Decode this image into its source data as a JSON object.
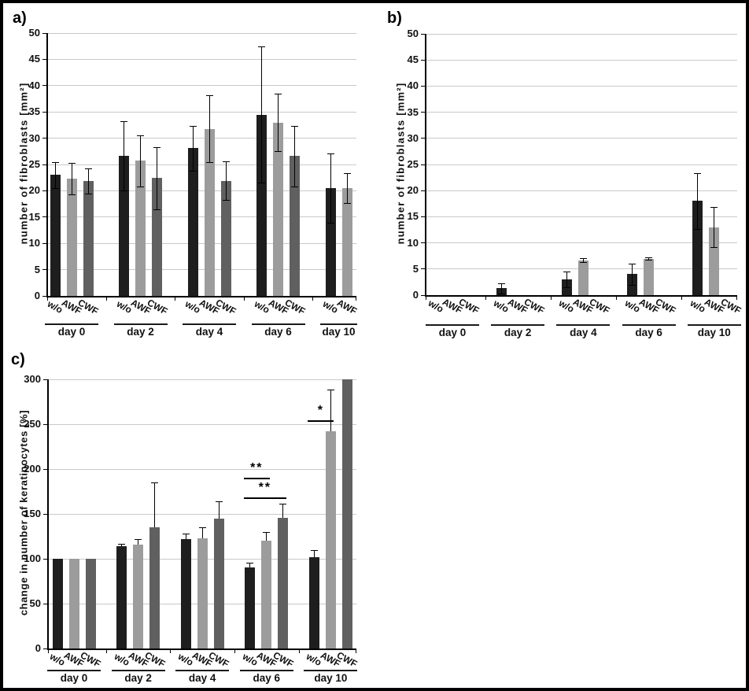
{
  "chart_data": [
    {
      "id": "a",
      "type": "bar",
      "panel_label": "a)",
      "title": "",
      "xlabel": "",
      "ylabel": "number of fibroblasts [mm²]",
      "ylim": [
        0,
        50
      ],
      "yticks": [
        0,
        5,
        10,
        15,
        20,
        25,
        30,
        35,
        40,
        45,
        50
      ],
      "grid": true,
      "legend": "none",
      "error_bars": "both",
      "series_labels": [
        "w/o",
        "AWF",
        "CWF"
      ],
      "series_colors": [
        "#1e1e1e",
        "#9c9c9c",
        "#606060"
      ],
      "categories": [
        "day 0",
        "day 2",
        "day 4",
        "day 6",
        "day 10"
      ],
      "groups": [
        {
          "category": "day 0",
          "labels": [
            "w/o",
            "AWF",
            "CWF"
          ],
          "values": [
            23.0,
            22.3,
            21.8
          ],
          "errors": [
            2.5,
            3.0,
            2.4
          ]
        },
        {
          "category": "day 2",
          "labels": [
            "w/o",
            "AWF",
            "CWF"
          ],
          "values": [
            26.6,
            25.7,
            22.4
          ],
          "errors": [
            6.6,
            4.9,
            5.9
          ]
        },
        {
          "category": "day 4",
          "labels": [
            "w/o",
            "AWF",
            "CWF"
          ],
          "values": [
            28.1,
            31.8,
            21.9
          ],
          "errors": [
            4.3,
            6.4,
            3.7
          ]
        },
        {
          "category": "day 6",
          "labels": [
            "w/o",
            "AWF",
            "CWF"
          ],
          "values": [
            34.5,
            33.0,
            26.6
          ],
          "errors": [
            13.0,
            5.5,
            5.8
          ]
        },
        {
          "category": "day 10",
          "labels": [
            "w/o",
            "AWF"
          ],
          "values": [
            20.5,
            20.5
          ],
          "errors": [
            6.6,
            2.9
          ]
        }
      ],
      "significance": []
    },
    {
      "id": "b",
      "type": "bar",
      "panel_label": "b)",
      "title": "",
      "xlabel": "",
      "ylabel": "number of fibroblasts [mm²]",
      "ylim": [
        0,
        50
      ],
      "yticks": [
        0,
        5,
        10,
        15,
        20,
        25,
        30,
        35,
        40,
        45,
        50
      ],
      "grid": true,
      "legend": "none",
      "error_bars": "both",
      "series_labels": [
        "w/o",
        "AWF",
        "CWF"
      ],
      "series_colors": [
        "#1e1e1e",
        "#9c9c9c",
        "#606060"
      ],
      "categories": [
        "day 0",
        "day 2",
        "day 4",
        "day 6",
        "day 10"
      ],
      "groups": [
        {
          "category": "day 0",
          "labels": [
            "w/o",
            "AWF",
            "CWF"
          ],
          "values": [
            null,
            null,
            null
          ],
          "errors": [
            null,
            null,
            null
          ]
        },
        {
          "category": "day 2",
          "labels": [
            "w/o",
            "AWF",
            "CWF"
          ],
          "values": [
            1.3,
            null,
            null
          ],
          "errors": [
            1.0,
            null,
            null
          ]
        },
        {
          "category": "day 4",
          "labels": [
            "w/o",
            "AWF",
            "CWF"
          ],
          "values": [
            3.0,
            6.7,
            null
          ],
          "errors": [
            1.5,
            0.4,
            null
          ]
        },
        {
          "category": "day 6",
          "labels": [
            "w/o",
            "AWF",
            "CWF"
          ],
          "values": [
            4.0,
            7.0,
            null
          ],
          "errors": [
            2.0,
            0.2,
            null
          ]
        },
        {
          "category": "day 10",
          "labels": [
            "w/o",
            "AWF",
            "CWF"
          ],
          "values": [
            18.0,
            13.0,
            null
          ],
          "errors": [
            5.4,
            3.8,
            null
          ]
        }
      ],
      "significance": []
    },
    {
      "id": "c",
      "type": "bar",
      "panel_label": "c)",
      "title": "",
      "xlabel": "",
      "ylabel": "change in number of keratinocytes [%]",
      "ylim": [
        0,
        300
      ],
      "yticks": [
        0,
        50,
        100,
        150,
        200,
        250,
        300
      ],
      "grid": true,
      "legend": "none",
      "error_bars": "up",
      "series_labels": [
        "w/o",
        "AWF",
        "CWF"
      ],
      "series_colors": [
        "#1e1e1e",
        "#9c9c9c",
        "#606060"
      ],
      "categories": [
        "day 0",
        "day 2",
        "day 4",
        "day 6",
        "day 10"
      ],
      "groups": [
        {
          "category": "day 0",
          "labels": [
            "w/o",
            "AWF",
            "CWF"
          ],
          "values": [
            100,
            100,
            100
          ],
          "errors": [
            0,
            0,
            0
          ]
        },
        {
          "category": "day 2",
          "labels": [
            "w/o",
            "AWF",
            "CWF"
          ],
          "values": [
            114,
            116,
            135
          ],
          "errors": [
            3,
            6,
            50
          ]
        },
        {
          "category": "day 4",
          "labels": [
            "w/o",
            "AWF",
            "CWF"
          ],
          "values": [
            122,
            123,
            145
          ],
          "errors": [
            6,
            12,
            19
          ]
        },
        {
          "category": "day 6",
          "labels": [
            "w/o",
            "AWF",
            "CWF"
          ],
          "values": [
            90,
            120,
            146
          ],
          "errors": [
            6,
            10,
            15
          ]
        },
        {
          "category": "day 10",
          "labels": [
            "w/o",
            "AWF",
            "CWF"
          ],
          "values": [
            102,
            242,
            300
          ],
          "errors": [
            8,
            47,
            0
          ]
        }
      ],
      "significance": [
        {
          "label": "**",
          "category": "day 6",
          "from": "w/o",
          "to": "AWF",
          "at": 190
        },
        {
          "label": "**",
          "category": "day 6",
          "from": "w/o",
          "to": "CWF",
          "at": 168
        },
        {
          "label": "*",
          "category": "day 10",
          "from": "w/o",
          "to": "AWF",
          "at": 254
        }
      ]
    }
  ]
}
